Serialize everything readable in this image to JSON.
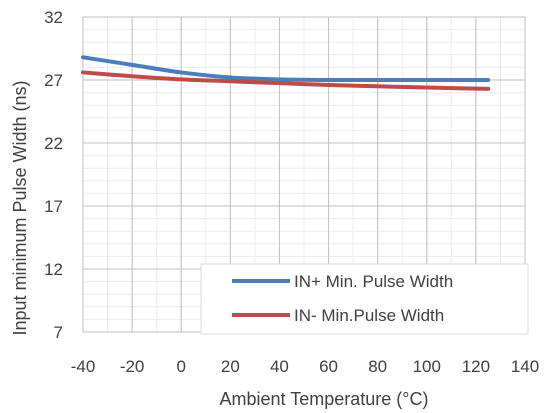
{
  "chart_data": {
    "type": "line",
    "title": "",
    "xlabel": "Ambient Temperature (°C)",
    "ylabel": "Input minimum Pulse Width (ns)",
    "xlim": [
      -40,
      140
    ],
    "ylim": [
      7,
      32
    ],
    "xticks": [
      -40,
      -20,
      0,
      20,
      40,
      60,
      80,
      100,
      120,
      140
    ],
    "yticks": [
      7,
      12,
      17,
      22,
      27,
      32
    ],
    "grid": true,
    "legend_position": "bottom-right",
    "series": [
      {
        "name": "IN+ Min. Pulse Width",
        "color": "#4a7ebb",
        "x": [
          -40,
          -20,
          0,
          20,
          40,
          60,
          80,
          100,
          125
        ],
        "y": [
          28.8,
          28.2,
          27.6,
          27.2,
          27.05,
          27.0,
          27.0,
          27.0,
          27.0
        ]
      },
      {
        "name": "IN- Min.Pulse Width",
        "color": "#be4b48",
        "x": [
          -40,
          -20,
          0,
          20,
          40,
          60,
          80,
          100,
          125
        ],
        "y": [
          27.6,
          27.3,
          27.05,
          26.9,
          26.75,
          26.6,
          26.5,
          26.4,
          26.3
        ]
      }
    ]
  }
}
